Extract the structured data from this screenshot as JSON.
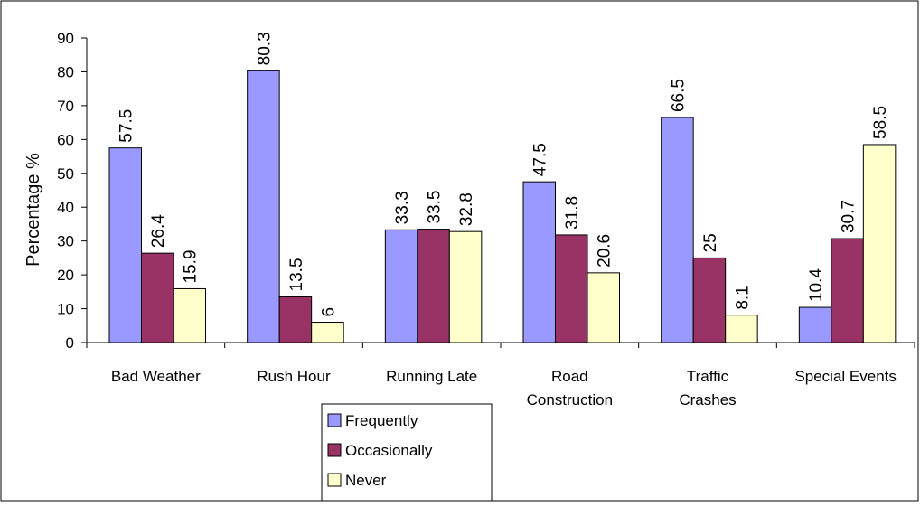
{
  "chart_data": {
    "type": "bar",
    "title": "",
    "xlabel": "",
    "ylabel": "Percentage %",
    "ylim": [
      0,
      90
    ],
    "ytick_step": 10,
    "grid": false,
    "legend_position": "bottom-center",
    "categories": [
      [
        "Bad Weather"
      ],
      [
        "Rush Hour"
      ],
      [
        "Running Late"
      ],
      [
        "Road",
        "Construction"
      ],
      [
        "Traffic",
        "Crashes"
      ],
      [
        "Special Events"
      ]
    ],
    "series": [
      {
        "name": "Frequently",
        "color": "#9999FF",
        "values": [
          57.5,
          80.3,
          33.3,
          47.5,
          66.5,
          10.4
        ]
      },
      {
        "name": "Occasionally",
        "color": "#993366",
        "values": [
          26.4,
          13.5,
          33.5,
          31.8,
          25,
          30.7
        ]
      },
      {
        "name": "Never",
        "color": "#FFFFCC",
        "values": [
          15.9,
          6,
          32.8,
          20.6,
          8.1,
          58.5
        ]
      }
    ]
  }
}
